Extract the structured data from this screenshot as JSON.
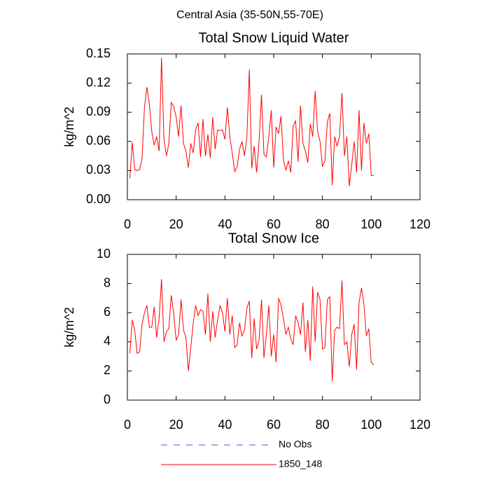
{
  "title": "Central Asia (35-50N,55-70E)",
  "legend": [
    {
      "name": "No Obs",
      "color": "#5050c8",
      "dashed": true
    }
  ],
  "chart_data": [
    {
      "type": "line",
      "title": "Total Snow Liquid Water",
      "ylabel": "kg/m^2",
      "xlim": [
        0,
        120
      ],
      "xticks": [
        0,
        20,
        40,
        60,
        80,
        100,
        120
      ],
      "ylim": [
        0,
        0.15
      ],
      "yticks": [
        {
          "value": 0,
          "label": "0.00"
        },
        0.03,
        0.06,
        0.09,
        0.12,
        0.15
      ],
      "x": [
        1,
        2,
        3,
        4,
        5,
        6,
        7,
        8,
        9,
        10,
        11,
        12,
        13,
        14,
        15,
        16,
        17,
        18,
        19,
        20,
        21,
        22,
        23,
        24,
        25,
        26,
        27,
        28,
        29,
        30,
        31,
        32,
        33,
        34,
        35,
        36,
        37,
        38,
        39,
        40,
        41,
        42,
        43,
        44,
        45,
        46,
        47,
        48,
        49,
        50,
        51,
        52,
        53,
        54,
        55,
        56,
        57,
        58,
        59,
        60,
        61,
        62,
        63,
        64,
        65,
        66,
        67,
        68,
        69,
        70,
        71,
        72,
        73,
        74,
        75,
        76,
        77,
        78,
        79,
        80,
        81,
        82,
        83,
        84,
        85,
        86,
        87,
        88,
        89,
        90,
        91,
        92,
        93,
        94,
        95,
        96,
        97,
        98,
        99,
        100,
        101
      ],
      "series": [
        {
          "name": "1850_148",
          "color": "#ff0000",
          "values": [
            0.022,
            0.059,
            0.031,
            0.03,
            0.031,
            0.042,
            0.095,
            0.116,
            0.098,
            0.07,
            0.056,
            0.065,
            0.05,
            0.146,
            0.062,
            0.045,
            0.058,
            0.1,
            0.096,
            0.085,
            0.065,
            0.097,
            0.058,
            0.05,
            0.033,
            0.058,
            0.048,
            0.072,
            0.079,
            0.044,
            0.083,
            0.045,
            0.067,
            0.043,
            0.085,
            0.052,
            0.072,
            0.071,
            0.072,
            0.062,
            0.095,
            0.065,
            0.048,
            0.029,
            0.034,
            0.052,
            0.06,
            0.045,
            0.064,
            0.134,
            0.032,
            0.055,
            0.028,
            0.06,
            0.108,
            0.047,
            0.044,
            0.065,
            0.092,
            0.033,
            0.075,
            0.068,
            0.086,
            0.041,
            0.03,
            0.04,
            0.028,
            0.076,
            0.081,
            0.039,
            0.097,
            0.058,
            0.05,
            0.038,
            0.078,
            0.065,
            0.112,
            0.07,
            0.06,
            0.034,
            0.04,
            0.08,
            0.089,
            0.015,
            0.065,
            0.055,
            0.065,
            0.11,
            0.045,
            0.065,
            0.014,
            0.036,
            0.06,
            0.028,
            0.092,
            0.03,
            0.079,
            0.058,
            0.068,
            0.025,
            0.025
          ]
        }
      ]
    },
    {
      "type": "line",
      "title": "Total Snow Ice",
      "ylabel": "kg/m^2",
      "xlim": [
        0,
        120
      ],
      "xticks": [
        0,
        20,
        40,
        60,
        80,
        100,
        120
      ],
      "ylim": [
        0,
        10
      ],
      "yticks": [
        0,
        2,
        4,
        6,
        8,
        10
      ],
      "x": [
        1,
        2,
        3,
        4,
        5,
        6,
        7,
        8,
        9,
        10,
        11,
        12,
        13,
        14,
        15,
        16,
        17,
        18,
        19,
        20,
        21,
        22,
        23,
        24,
        25,
        26,
        27,
        28,
        29,
        30,
        31,
        32,
        33,
        34,
        35,
        36,
        37,
        38,
        39,
        40,
        41,
        42,
        43,
        44,
        45,
        46,
        47,
        48,
        49,
        50,
        51,
        52,
        53,
        54,
        55,
        56,
        57,
        58,
        59,
        60,
        61,
        62,
        63,
        64,
        65,
        66,
        67,
        68,
        69,
        70,
        71,
        72,
        73,
        74,
        75,
        76,
        77,
        78,
        79,
        80,
        81,
        82,
        83,
        84,
        85,
        86,
        87,
        88,
        89,
        90,
        91,
        92,
        93,
        94,
        95,
        96,
        97,
        98,
        99,
        100,
        101
      ],
      "series": [
        {
          "name": "1850_148",
          "color": "#ff0000",
          "values": [
            3.2,
            5.5,
            4.8,
            3.2,
            3.3,
            5.2,
            6.0,
            6.5,
            5.0,
            5.0,
            6.4,
            4.3,
            5.6,
            8.3,
            4.0,
            4.7,
            4.9,
            7.2,
            5.9,
            4.1,
            4.5,
            6.9,
            4.8,
            4.3,
            2.0,
            3.6,
            5.3,
            6.5,
            5.8,
            6.2,
            6.1,
            4.5,
            7.3,
            4.0,
            6.1,
            4.3,
            5.5,
            6.5,
            6.0,
            4.7,
            7.0,
            4.5,
            5.8,
            3.6,
            3.8,
            5.3,
            4.4,
            4.8,
            6.3,
            6.8,
            2.9,
            5.6,
            3.5,
            4.1,
            6.9,
            2.9,
            4.5,
            6.5,
            3.0,
            4.5,
            2.6,
            7.0,
            6.5,
            5.6,
            4.5,
            5.0,
            4.2,
            3.8,
            5.8,
            5.3,
            4.5,
            6.7,
            3.3,
            5.5,
            2.7,
            7.8,
            4.0,
            7.4,
            6.9,
            3.5,
            3.6,
            6.9,
            7.1,
            1.3,
            4.8,
            5.0,
            4.9,
            8.2,
            3.8,
            4.0,
            2.3,
            4.5,
            5.2,
            2.1,
            6.7,
            7.7,
            6.6,
            4.4,
            4.9,
            2.6,
            2.4
          ]
        }
      ]
    }
  ]
}
